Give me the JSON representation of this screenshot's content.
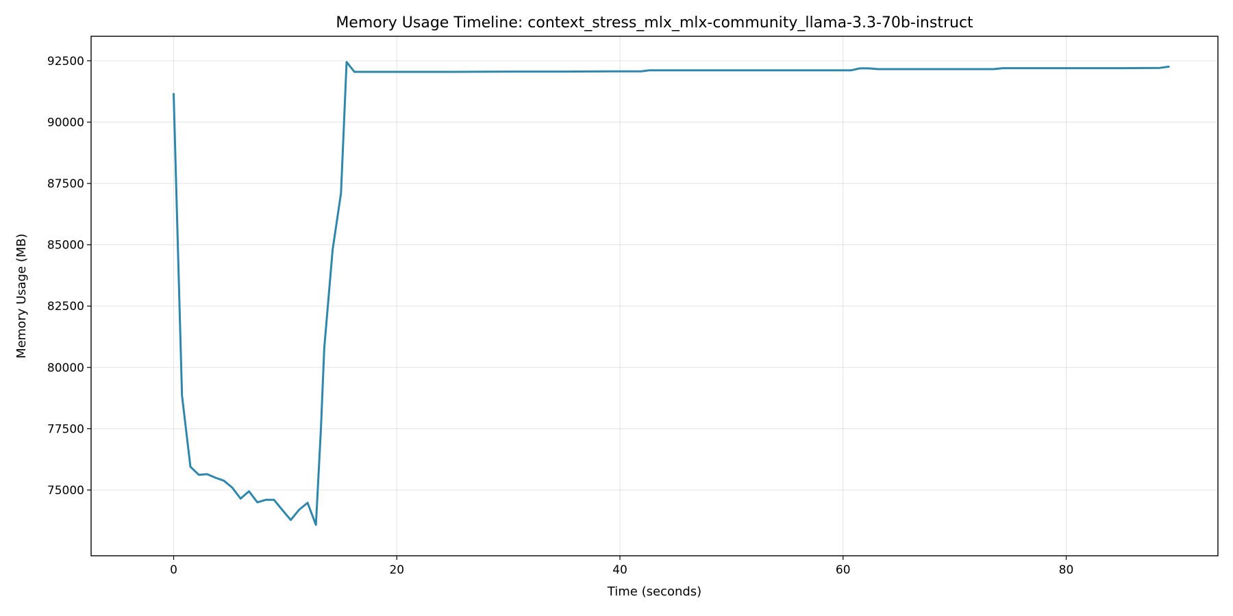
{
  "chart_data": {
    "type": "line",
    "title": "Memory Usage Timeline: context_stress_mlx_mlx-community_llama-3.3-70b-instruct",
    "xlabel": "Time (seconds)",
    "ylabel": "Memory Usage (MB)",
    "xlim": [
      -7.4,
      93.6
    ],
    "ylim": [
      72320,
      93500
    ],
    "x_ticks": [
      0,
      20,
      40,
      60,
      80
    ],
    "y_ticks": [
      75000,
      77500,
      80000,
      82500,
      85000,
      87500,
      90000,
      92500
    ],
    "grid": true,
    "line_color": "#2e86ab",
    "series": [
      {
        "x": [
          0,
          0.75,
          1.5,
          2.25,
          3.0,
          3.75,
          4.5,
          5.25,
          6.0,
          6.75,
          7.5,
          8.25,
          9.0,
          9.75,
          10.5,
          11.25,
          12.0,
          12.75,
          13.2,
          13.5,
          14.25,
          15.0,
          15.5,
          16.2,
          20,
          25,
          30,
          35,
          40,
          41.9,
          42.6,
          45,
          50,
          55,
          60,
          60.7,
          61.5,
          62.3,
          63.1,
          65,
          70,
          73.5,
          74.3,
          75,
          80,
          85,
          88.4,
          89.2
        ],
        "y": [
          91150,
          78850,
          75950,
          75620,
          75650,
          75500,
          75380,
          75100,
          74650,
          74950,
          74500,
          74600,
          74600,
          74180,
          73780,
          74200,
          74480,
          73580,
          77500,
          80800,
          84800,
          87100,
          92450,
          92050,
          92050,
          92050,
          92060,
          92060,
          92070,
          92070,
          92110,
          92110,
          92110,
          92110,
          92110,
          92110,
          92190,
          92190,
          92160,
          92160,
          92160,
          92160,
          92200,
          92200,
          92200,
          92200,
          92210,
          92260
        ]
      }
    ]
  }
}
